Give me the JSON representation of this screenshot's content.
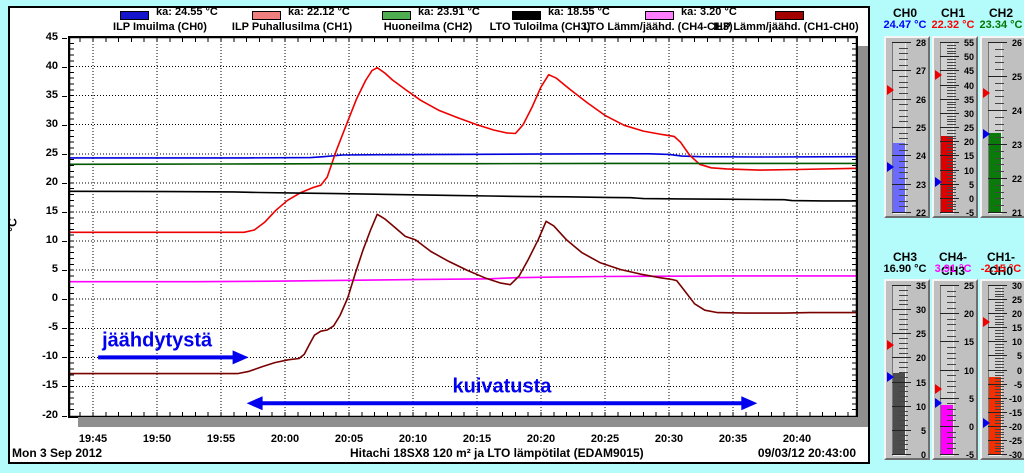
{
  "legend": {
    "items": [
      {
        "name": "ILP Imuilma (CH0)",
        "ka_label": "ka: 24.55 °C",
        "swatch_color": "#1515cc"
      },
      {
        "name": "ILP Puhallusilma (CH1)",
        "ka_label": "ka: 22.12 °C",
        "swatch_color": "#f08080"
      },
      {
        "name": "Huoneilma (CH2)",
        "ka_label": "ka: 23.91 °C",
        "swatch_color": "#4fae4f"
      },
      {
        "name": "LTO Tuloilma (CH3)",
        "ka_label": "ka: 18.55 °C",
        "swatch_color": "#000000"
      },
      {
        "name": "LTO Lämm/jäähd. (CH4-CH3)",
        "ka_label": "ka: 3.20 °C",
        "swatch_color": "#ff7dff"
      },
      {
        "name": "ILP Lämm/jäähd. (CH1-CH0)",
        "ka_label": null,
        "swatch_color": "#a40000"
      }
    ]
  },
  "chart_data": {
    "type": "line",
    "title": "Hitachi 18SX8 120 m² ja LTO lämpötilat (EDAM9015)",
    "ylabel": "°C",
    "ylim": [
      -20,
      45
    ],
    "y_tick_step": 5,
    "grid": true,
    "x_tick_labels": [
      "19:45",
      "19:50",
      "19:55",
      "20:00",
      "20:05",
      "20:10",
      "20:15",
      "20:20",
      "20:25",
      "20:30",
      "20:35",
      "20:40"
    ],
    "x_minutes_of_ticks": [
      0,
      5,
      10,
      15,
      20,
      25,
      30,
      35,
      40,
      45,
      50,
      55
    ],
    "x_range_minutes": [
      -1.9,
      59.7
    ],
    "series": [
      {
        "name": "ILP Imuilma (CH0)",
        "color": "#0000dd",
        "avg": 24.55,
        "points": [
          [
            -1.9,
            24.3
          ],
          [
            5,
            24.3
          ],
          [
            12,
            24.3
          ],
          [
            17,
            24.35
          ],
          [
            18,
            24.5
          ],
          [
            19.5,
            24.8
          ],
          [
            23,
            24.85
          ],
          [
            28,
            24.9
          ],
          [
            34,
            24.95
          ],
          [
            40,
            25.0
          ],
          [
            43.5,
            25.0
          ],
          [
            45,
            24.9
          ],
          [
            46,
            24.6
          ],
          [
            47.5,
            24.5
          ],
          [
            52,
            24.45
          ],
          [
            59.7,
            24.5
          ]
        ]
      },
      {
        "name": "ILP Puhallusilma (CH1)",
        "color": "#ee0000",
        "avg": 22.12,
        "points": [
          [
            -1.9,
            11.5
          ],
          [
            6,
            11.5
          ],
          [
            11.8,
            11.5
          ],
          [
            12.6,
            11.9
          ],
          [
            13.4,
            13.2
          ],
          [
            14.3,
            15.3
          ],
          [
            15.2,
            17.0
          ],
          [
            16.2,
            18.3
          ],
          [
            17.2,
            19.2
          ],
          [
            17.8,
            19.6
          ],
          [
            18.3,
            21.0
          ],
          [
            19.0,
            25.5
          ],
          [
            19.8,
            30.0
          ],
          [
            20.6,
            34.5
          ],
          [
            21.3,
            37.6
          ],
          [
            21.8,
            39.3
          ],
          [
            22.2,
            39.8
          ],
          [
            22.8,
            38.9
          ],
          [
            23.4,
            37.7
          ],
          [
            24.5,
            35.9
          ],
          [
            25.6,
            34.2
          ],
          [
            27,
            32.5
          ],
          [
            28.5,
            31.2
          ],
          [
            30,
            30.0
          ],
          [
            31.3,
            29.1
          ],
          [
            32.3,
            28.6
          ],
          [
            33.0,
            28.5
          ],
          [
            33.6,
            30.0
          ],
          [
            34.3,
            33.0
          ],
          [
            35.0,
            36.5
          ],
          [
            35.6,
            38.6
          ],
          [
            36.2,
            38.0
          ],
          [
            37.2,
            36.2
          ],
          [
            38.6,
            33.8
          ],
          [
            40,
            31.6
          ],
          [
            41.5,
            29.9
          ],
          [
            43,
            28.9
          ],
          [
            44.5,
            28.3
          ],
          [
            45.4,
            28.0
          ],
          [
            45.9,
            27.0
          ],
          [
            46.6,
            24.8
          ],
          [
            47.4,
            23.2
          ],
          [
            48.3,
            22.6
          ],
          [
            49.5,
            22.4
          ],
          [
            52,
            22.2
          ],
          [
            55,
            22.3
          ],
          [
            59.7,
            22.5
          ]
        ]
      },
      {
        "name": "Huoneilma (CH2)",
        "color": "#005800",
        "avg": 23.91,
        "points": [
          [
            -1.9,
            23.2
          ],
          [
            10,
            23.25
          ],
          [
            20,
            23.3
          ],
          [
            30,
            23.3
          ],
          [
            40,
            23.35
          ],
          [
            50,
            23.35
          ],
          [
            59.7,
            23.35
          ]
        ]
      },
      {
        "name": "LTO Tuloilma (CH3)",
        "color": "#000000",
        "avg": 18.55,
        "points": [
          [
            -1.9,
            18.55
          ],
          [
            6,
            18.5
          ],
          [
            11,
            18.45
          ],
          [
            13,
            18.35
          ],
          [
            16,
            18.25
          ],
          [
            19,
            18.15
          ],
          [
            22,
            18.05
          ],
          [
            25,
            17.95
          ],
          [
            28,
            17.85
          ],
          [
            31,
            17.75
          ],
          [
            34,
            17.65
          ],
          [
            37,
            17.6
          ],
          [
            40,
            17.5
          ],
          [
            42,
            17.45
          ],
          [
            43,
            17.3
          ],
          [
            46,
            17.25
          ],
          [
            49,
            17.2
          ],
          [
            52,
            17.15
          ],
          [
            54,
            17.1
          ],
          [
            54.6,
            16.95
          ],
          [
            57,
            16.9
          ],
          [
            59.7,
            16.9
          ]
        ]
      },
      {
        "name": "LTO Lämm/jäähd. (CH4-CH3)",
        "color": "#ff00ff",
        "avg": 3.2,
        "points": [
          [
            -1.9,
            3.0
          ],
          [
            8,
            3.0
          ],
          [
            14,
            3.1
          ],
          [
            20,
            3.25
          ],
          [
            26,
            3.4
          ],
          [
            31,
            3.5
          ],
          [
            33,
            3.7
          ],
          [
            36,
            3.8
          ],
          [
            40,
            3.9
          ],
          [
            45,
            3.95
          ],
          [
            50,
            4.0
          ],
          [
            59.7,
            4.0
          ]
        ]
      },
      {
        "name": "ILP Lämm/jäähd. (CH1-CH0)",
        "color": "#7a0000",
        "avg": null,
        "points": [
          [
            -1.9,
            -12.8
          ],
          [
            6,
            -12.8
          ],
          [
            11.3,
            -12.8
          ],
          [
            12.2,
            -12.4
          ],
          [
            13.2,
            -11.6
          ],
          [
            14.2,
            -10.9
          ],
          [
            15.3,
            -10.4
          ],
          [
            16.1,
            -10.2
          ],
          [
            16.5,
            -9.5
          ],
          [
            16.9,
            -7.8
          ],
          [
            17.3,
            -6.2
          ],
          [
            17.8,
            -5.5
          ],
          [
            18.3,
            -5.3
          ],
          [
            18.8,
            -4.6
          ],
          [
            19.3,
            -2.8
          ],
          [
            19.9,
            0.2
          ],
          [
            20.5,
            4.5
          ],
          [
            21.1,
            8.5
          ],
          [
            21.7,
            12.0
          ],
          [
            22.2,
            14.6
          ],
          [
            22.8,
            13.8
          ],
          [
            23.5,
            12.5
          ],
          [
            24.4,
            10.8
          ],
          [
            25.2,
            10.2
          ],
          [
            26.4,
            8.2
          ],
          [
            27.8,
            6.5
          ],
          [
            29.2,
            5.0
          ],
          [
            30.7,
            3.6
          ],
          [
            31.8,
            2.8
          ],
          [
            32.6,
            2.5
          ],
          [
            33.3,
            4.0
          ],
          [
            34.0,
            6.8
          ],
          [
            34.8,
            10.3
          ],
          [
            35.4,
            13.4
          ],
          [
            36.0,
            12.6
          ],
          [
            37.0,
            10.2
          ],
          [
            38.2,
            8.0
          ],
          [
            39.6,
            6.3
          ],
          [
            41.2,
            5.1
          ],
          [
            42.8,
            4.3
          ],
          [
            44.3,
            3.7
          ],
          [
            45.2,
            3.4
          ],
          [
            45.6,
            3.2
          ],
          [
            46.2,
            1.5
          ],
          [
            47.0,
            -0.8
          ],
          [
            47.8,
            -1.9
          ],
          [
            48.8,
            -2.3
          ],
          [
            51,
            -2.4
          ],
          [
            54,
            -2.4
          ],
          [
            56,
            -2.3
          ],
          [
            59.7,
            -2.3
          ]
        ]
      }
    ],
    "annotations": [
      {
        "text": "jäähdytystä",
        "color": "#0000ee",
        "arrow": "right",
        "x_min": [
          0.4,
          12.0
        ],
        "temp": -10.0
      },
      {
        "text": "kuivatusta",
        "color": "#0000ee",
        "arrow": "double",
        "x_min": [
          12.0,
          51.9
        ],
        "temp": -17.9
      }
    ]
  },
  "status_bar": {
    "date": "Mon 3 Sep 2012",
    "title": "Hitachi 18SX8 120 m² ja LTO lämpötilat (EDAM9015)",
    "timestamp": "09/03/12 20:43:00"
  },
  "gauges": {
    "groups": [
      {
        "items": [
          {
            "title": "CH0",
            "value_text": "24.47 °C",
            "value_color": "#0000ff",
            "fill_color": "#6a6aff",
            "min": 22,
            "max": 28,
            "step": 1,
            "value": 24.47,
            "peak_marker": 26.3,
            "low_marker": 23.6
          },
          {
            "title": "CH1",
            "value_text": "22.32 °C",
            "value_color": "#ff0000",
            "fill_color": "#dd0000",
            "min": -5,
            "max": 55,
            "step": 5,
            "value": 22.32,
            "peak_marker": 43.5,
            "low_marker": 5.5
          },
          {
            "title": "CH2",
            "value_text": "23.34 °C",
            "value_color": "#007800",
            "fill_color": "#0a7a0a",
            "min": 21,
            "max": 26,
            "step": 1,
            "value": 23.34,
            "peak_marker": 24.5,
            "low_marker": 23.3
          }
        ]
      },
      {
        "items": [
          {
            "title": "CH3",
            "value_text": "16.90 °C",
            "value_color": "#000000",
            "fill_color": "#4d4d4d",
            "min": 0,
            "max": 35,
            "step": 5,
            "value": 16.9,
            "peak_marker": 22.6,
            "low_marker": 16.0
          },
          {
            "title": "CH4-CH3",
            "value_text": "3.91 °C",
            "value_color": "#ff00ff",
            "fill_color": "#ff00ff",
            "min": -5,
            "max": 25,
            "step": 5,
            "value": 3.91,
            "peak_marker": 6.5,
            "low_marker": 4.1
          },
          {
            "title": "CH1-CH0",
            "value_text": "-2.15 °C",
            "value_color": "#ff0000",
            "fill_color": "#f03000",
            "min": -30,
            "max": 30,
            "step": 5,
            "value": -2.15,
            "peak_marker": 17.0,
            "low_marker": -19.0
          }
        ]
      }
    ]
  }
}
